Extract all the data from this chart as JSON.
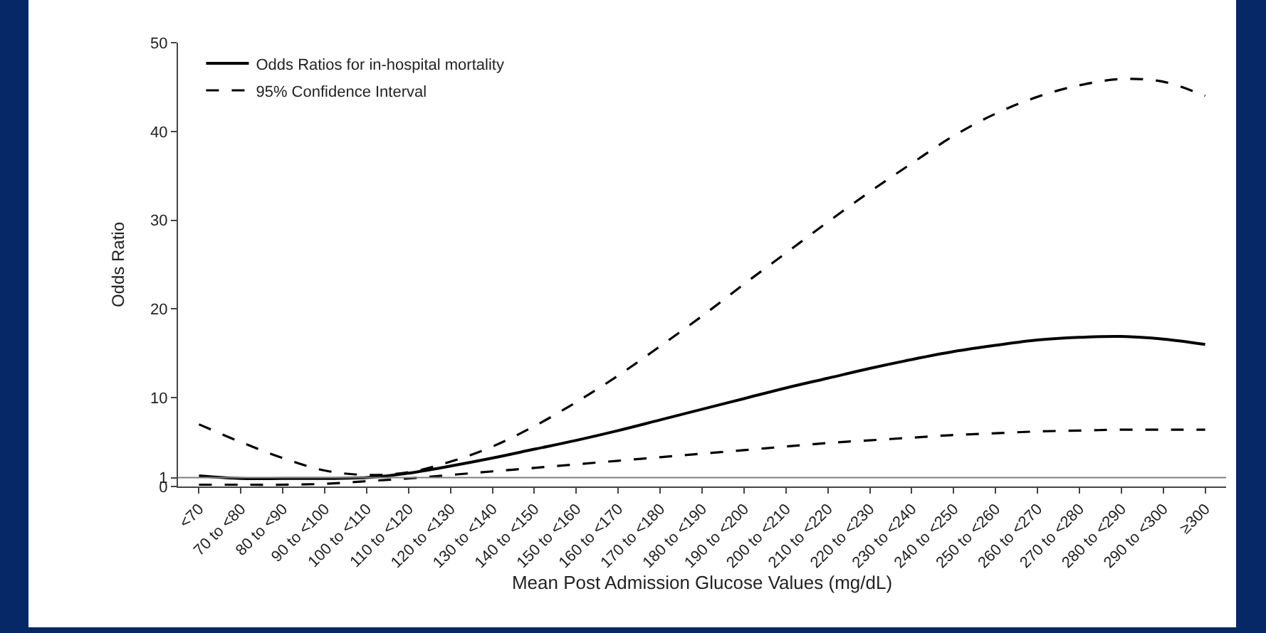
{
  "chart_data": {
    "type": "line",
    "xlabel": "Mean Post Admission Glucose Values (mg/dL)",
    "ylabel": "Odds Ratio",
    "categories": [
      "<70",
      "70 to <80",
      "80 to <90",
      "90 to <100",
      "100 to <110",
      "110 to <120",
      "120 to <130",
      "130 to <140",
      "140 to <150",
      "150 to <160",
      "160 to <170",
      "170 to <180",
      "180 to <190",
      "190 to <200",
      "200 to <210",
      "210 to <220",
      "220 to <230",
      "230 to <240",
      "240 to <250",
      "250 to <260",
      "260 to <270",
      "270 to <280",
      "280 to <290",
      "290 to <300",
      "≥300"
    ],
    "series": [
      {
        "name": "Odds Ratios for in-hospital mortality",
        "color": "#000000",
        "line_style": "solid",
        "values": [
          1.2,
          0.9,
          0.9,
          0.9,
          1.0,
          1.5,
          2.3,
          3.2,
          4.2,
          5.2,
          6.3,
          7.5,
          8.7,
          9.9,
          11.1,
          12.2,
          13.3,
          14.3,
          15.2,
          15.9,
          16.5,
          16.8,
          16.9,
          16.6,
          16.0
        ]
      },
      {
        "name": "95% Confidence Interval",
        "color": "#000000",
        "line_style": "dashed",
        "values": [
          7.0,
          5.0,
          3.2,
          1.8,
          1.3,
          1.6,
          2.8,
          4.5,
          6.8,
          9.5,
          12.5,
          15.8,
          19.2,
          22.8,
          26.3,
          29.8,
          33.2,
          36.4,
          39.5,
          42.0,
          43.9,
          45.2,
          45.9,
          45.6,
          44.0
        ]
      },
      {
        "color": "#000000",
        "line_style": "dashed",
        "values": [
          0.2,
          0.2,
          0.2,
          0.3,
          0.6,
          0.9,
          1.3,
          1.7,
          2.1,
          2.5,
          2.9,
          3.3,
          3.7,
          4.1,
          4.5,
          4.9,
          5.2,
          5.5,
          5.8,
          6.0,
          6.2,
          6.3,
          6.4,
          6.4,
          6.4
        ]
      }
    ],
    "ylim": [
      0,
      50
    ],
    "yticks": [
      0,
      1,
      10,
      20,
      30,
      40,
      50
    ],
    "ref_lines": [
      {
        "axis": "y",
        "value": 1,
        "color": "#808080"
      }
    ],
    "legend": "top left",
    "marker": "none"
  }
}
